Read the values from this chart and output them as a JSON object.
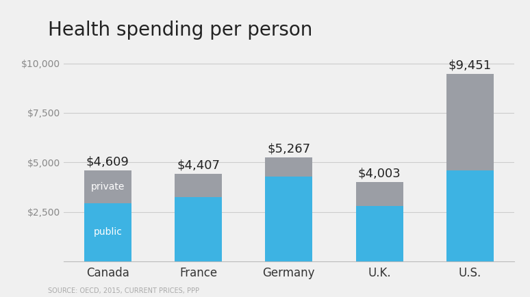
{
  "title": "Health spending per person",
  "categories": [
    "Canada",
    "France",
    "Germany",
    "U.K.",
    "U.S."
  ],
  "public": [
    2950,
    3250,
    4300,
    2800,
    4600
  ],
  "private": [
    1659,
    1157,
    967,
    1203,
    4851
  ],
  "totals": [
    "$4,609",
    "$4,407",
    "$5,267",
    "$4,003",
    "$9,451"
  ],
  "public_color": "#3db3e3",
  "private_color": "#9b9ea5",
  "bg_color": "#f0f0f0",
  "ylim": [
    0,
    10500
  ],
  "yticks": [
    0,
    2500,
    5000,
    7500,
    10000
  ],
  "ytick_labels": [
    "",
    "$2,500",
    "$5,000",
    "$7,500",
    "$10,000"
  ],
  "source_text": "SOURCE: OECD, 2015, CURRENT PRICES, PPP",
  "title_fontsize": 20,
  "tick_fontsize": 10,
  "bar_label_fontsize": 13,
  "source_fontsize": 7
}
